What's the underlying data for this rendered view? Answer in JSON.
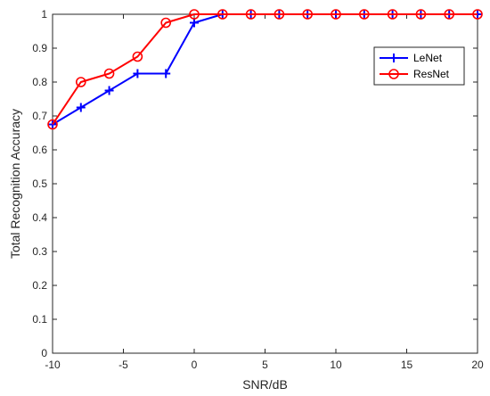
{
  "chart_data": {
    "type": "line",
    "title": "",
    "xlabel": "SNR/dB",
    "ylabel": "Total Recognition Accuracy",
    "xlim": [
      -10,
      20
    ],
    "ylim": [
      0,
      1
    ],
    "xticks": [
      -10,
      -5,
      0,
      5,
      10,
      15,
      20
    ],
    "yticks": [
      0,
      0.1,
      0.2,
      0.3,
      0.4,
      0.5,
      0.6,
      0.7,
      0.8,
      0.9,
      1
    ],
    "grid": false,
    "legend_position": "top-right",
    "x": [
      -10,
      -8,
      -6,
      -4,
      -2,
      0,
      2,
      4,
      6,
      8,
      10,
      12,
      14,
      16,
      18,
      20
    ],
    "series": [
      {
        "name": "LeNet",
        "color": "#0000ff",
        "marker": "plus",
        "values": [
          0.675,
          0.725,
          0.775,
          0.825,
          0.825,
          0.975,
          1,
          1,
          1,
          1,
          1,
          1,
          1,
          1,
          1,
          1
        ]
      },
      {
        "name": "ResNet",
        "color": "#ff0000",
        "marker": "circle",
        "values": [
          0.675,
          0.8,
          0.825,
          0.875,
          0.975,
          1,
          1,
          1,
          1,
          1,
          1,
          1,
          1,
          1,
          1,
          1
        ]
      }
    ]
  }
}
